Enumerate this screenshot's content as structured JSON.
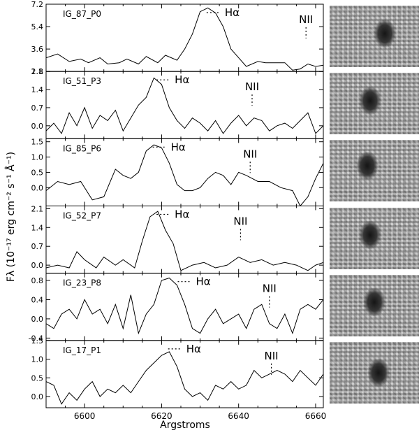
{
  "chart_data": {
    "type": "line",
    "x_label": "Argstroms",
    "y_label": "Fλ (10⁻¹⁷ erg cm⁻² s⁻¹ Å⁻¹)",
    "x_range": [
      6590,
      6662
    ],
    "x_ticks": [
      "6600",
      "6620",
      "6640",
      "6660"
    ],
    "panels": [
      {
        "name": "IG_87_P0",
        "ylim": [
          1.8,
          7.2
        ],
        "y_ticks": [
          "1.8",
          "3.6",
          "5.4",
          "7.2"
        ],
        "halpha_label": "Hα",
        "nii_label": "NII",
        "halpha_x": 6633.5,
        "nii_x": 6657.5,
        "x": [
          6590,
          6593,
          6596,
          6599,
          6601,
          6604,
          6606,
          6609,
          6611,
          6614,
          6616,
          6619,
          6621,
          6624,
          6626,
          6628,
          6630,
          6632,
          6634,
          6636,
          6638,
          6640,
          6642,
          6645,
          6647,
          6649,
          6652,
          6654,
          6656,
          6658,
          6660,
          6662
        ],
        "values": [
          2.9,
          3.2,
          2.6,
          2.8,
          2.5,
          2.9,
          2.4,
          2.5,
          2.8,
          2.4,
          3.0,
          2.5,
          3.1,
          2.7,
          3.6,
          4.8,
          6.6,
          6.9,
          6.5,
          5.4,
          3.6,
          2.9,
          2.2,
          2.6,
          2.5,
          2.5,
          2.5,
          1.9,
          2.0,
          2.4,
          2.2,
          2.3
        ]
      },
      {
        "name": "IG_51_P3",
        "ylim": [
          -0.5,
          2.1
        ],
        "y_ticks": [
          "0.0",
          "0.7",
          "1.4",
          "2.1"
        ],
        "halpha_label": "Hα",
        "nii_label": "NII",
        "halpha_x": 6620.5,
        "nii_x": 6643.5,
        "x": [
          6590,
          6592,
          6594,
          6596,
          6598,
          6600,
          6602,
          6604,
          6606,
          6608,
          6610,
          6612,
          6614,
          6616,
          6618,
          6620,
          6622,
          6624,
          6626,
          6628,
          6630,
          6632,
          6634,
          6636,
          6638,
          6640,
          6642,
          6644,
          6646,
          6648,
          6650,
          6652,
          6654,
          6656,
          6658,
          6660,
          6662
        ],
        "values": [
          -0.2,
          0.1,
          -0.3,
          0.5,
          0.0,
          0.7,
          -0.1,
          0.4,
          0.2,
          0.6,
          -0.2,
          0.3,
          0.8,
          1.1,
          1.85,
          1.6,
          0.7,
          0.2,
          -0.1,
          0.3,
          0.1,
          -0.2,
          0.2,
          -0.3,
          0.1,
          0.4,
          0.0,
          0.3,
          0.2,
          -0.2,
          0.0,
          0.1,
          -0.1,
          0.2,
          0.5,
          -0.3,
          0.0
        ]
      },
      {
        "name": "IG_85_P6",
        "ylim": [
          -0.6,
          1.6
        ],
        "y_ticks": [
          "0.0",
          "0.5",
          "1.0",
          "1.5"
        ],
        "halpha_label": "Hα",
        "nii_label": "NII",
        "halpha_x": 6619.5,
        "nii_x": 6643.0,
        "x": [
          6590,
          6593,
          6596,
          6599,
          6602,
          6605,
          6608,
          6610,
          6612,
          6614,
          6616,
          6618,
          6620,
          6622,
          6624,
          6626,
          6628,
          6630,
          6632,
          6634,
          6636,
          6638,
          6640,
          6642,
          6645,
          6648,
          6651,
          6654,
          6656,
          6658,
          6660,
          6662
        ],
        "values": [
          -0.1,
          0.2,
          0.1,
          0.2,
          -0.4,
          -0.3,
          0.6,
          0.4,
          0.3,
          0.5,
          1.2,
          1.4,
          1.3,
          0.8,
          0.1,
          -0.1,
          -0.1,
          0.0,
          0.3,
          0.5,
          0.4,
          0.1,
          0.5,
          0.4,
          0.2,
          0.2,
          0.0,
          -0.1,
          -0.6,
          -0.3,
          0.3,
          0.8
        ]
      },
      {
        "name": "IG_52_P7",
        "ylim": [
          -0.3,
          2.2
        ],
        "y_ticks": [
          "0.0",
          "0.7",
          "1.4",
          "2.1"
        ],
        "halpha_label": "Hα",
        "nii_label": "NII",
        "halpha_x": 6620.5,
        "nii_x": 6640.5,
        "x": [
          6590,
          6593,
          6596,
          6598,
          6600,
          6603,
          6605,
          6608,
          6610,
          6613,
          6615,
          6617,
          6619,
          6621,
          6623,
          6625,
          6628,
          6631,
          6634,
          6637,
          6640,
          6643,
          6646,
          6649,
          6652,
          6655,
          6658,
          6660,
          6662
        ],
        "values": [
          -0.1,
          0.0,
          -0.1,
          0.5,
          0.2,
          -0.1,
          0.3,
          0.0,
          0.2,
          -0.1,
          0.9,
          1.8,
          2.0,
          1.3,
          0.8,
          -0.2,
          0.0,
          0.1,
          -0.1,
          0.0,
          0.3,
          0.1,
          0.2,
          0.0,
          0.1,
          0.0,
          -0.2,
          0.0,
          0.1
        ]
      },
      {
        "name": "IG_23_P8",
        "ylim": [
          -0.45,
          0.95
        ],
        "y_ticks": [
          "-0.4",
          "0.0",
          "0.4",
          "0.8"
        ],
        "halpha_label": "Hα",
        "nii_label": "NII",
        "halpha_x": 6626.0,
        "nii_x": 6648.0,
        "x": [
          6590,
          6592,
          6594,
          6596,
          6598,
          6600,
          6602,
          6604,
          6606,
          6608,
          6610,
          6612,
          6614,
          6616,
          6618,
          6620,
          6622,
          6624,
          6626,
          6628,
          6630,
          6632,
          6634,
          6636,
          6638,
          6640,
          6642,
          6644,
          6646,
          6648,
          6650,
          6652,
          6654,
          6656,
          6658,
          6660,
          6662
        ],
        "values": [
          -0.1,
          -0.2,
          0.1,
          0.2,
          0.0,
          0.4,
          0.1,
          0.2,
          -0.1,
          0.3,
          -0.2,
          0.5,
          -0.3,
          0.1,
          0.3,
          0.8,
          0.85,
          0.7,
          0.3,
          -0.2,
          -0.3,
          0.0,
          0.2,
          -0.1,
          0.0,
          0.1,
          -0.2,
          0.2,
          0.3,
          -0.1,
          -0.2,
          0.1,
          -0.3,
          0.2,
          0.3,
          0.2,
          0.4
        ]
      },
      {
        "name": "IG_17_P1",
        "ylim": [
          -0.3,
          1.5
        ],
        "y_ticks": [
          "0.0",
          "0.5",
          "1.0",
          "1.5"
        ],
        "halpha_label": "Hα",
        "nii_label": "NII",
        "halpha_x": 6623.5,
        "nii_x": 6648.5,
        "x": [
          6590,
          6592,
          6594,
          6596,
          6598,
          6600,
          6602,
          6604,
          6606,
          6608,
          6610,
          6612,
          6614,
          6616,
          6618,
          6620,
          6622,
          6624,
          6626,
          6628,
          6630,
          6632,
          6634,
          6636,
          6638,
          6640,
          6642,
          6644,
          6646,
          6648,
          6650,
          6652,
          6654,
          6656,
          6658,
          6660,
          6662
        ],
        "values": [
          0.4,
          0.3,
          -0.2,
          0.1,
          -0.1,
          0.2,
          0.4,
          0.0,
          0.2,
          0.1,
          0.3,
          0.1,
          0.4,
          0.7,
          0.9,
          1.1,
          1.2,
          0.8,
          0.2,
          0.0,
          0.1,
          -0.1,
          0.3,
          0.2,
          0.4,
          0.2,
          0.3,
          0.7,
          0.5,
          0.6,
          0.7,
          0.6,
          0.4,
          0.7,
          0.5,
          0.3,
          0.6
        ]
      }
    ]
  },
  "colors": {
    "line": "#000000",
    "background": "#ffffff",
    "axes": "#000000"
  }
}
